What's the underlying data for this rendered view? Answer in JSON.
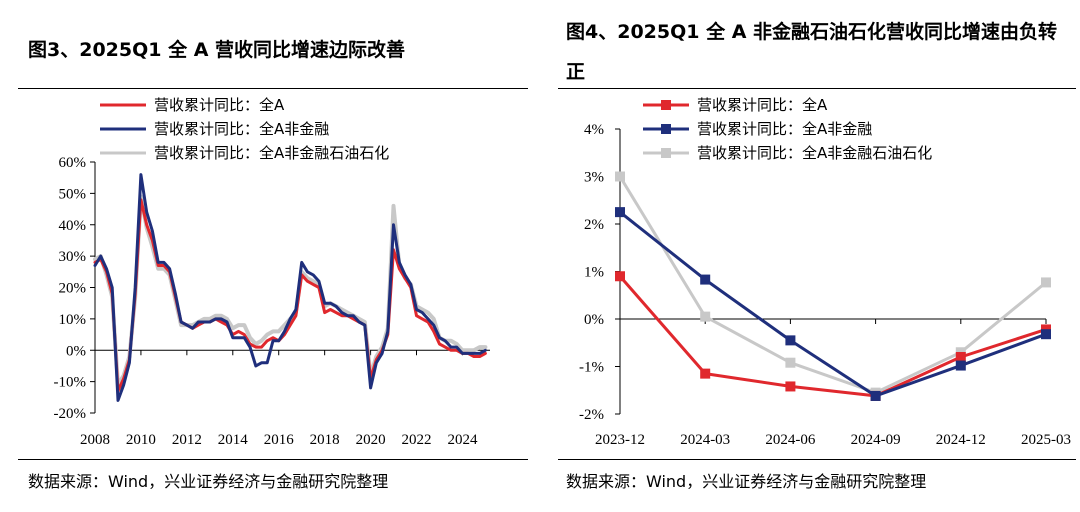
{
  "chart_data": [
    {
      "type": "line",
      "title": "图3、2025Q1 全 A 营收同比增速边际改善",
      "source": "数据来源：Wind，兴业证券经济与金融研究院整理",
      "xlabel": "",
      "ylabel": "",
      "xlim": [
        2008.0,
        2025.2
      ],
      "ylim": [
        -20,
        60
      ],
      "y_ticks": [
        "60%",
        "50%",
        "40%",
        "30%",
        "20%",
        "10%",
        "0%",
        "-10%",
        "-20%"
      ],
      "y_tick_values": [
        60,
        50,
        40,
        30,
        20,
        10,
        0,
        -10,
        -20
      ],
      "x_ticks": [
        "2008",
        "2010",
        "2012",
        "2014",
        "2016",
        "2018",
        "2020",
        "2022",
        "2024"
      ],
      "x_tick_values": [
        2008,
        2010,
        2012,
        2014,
        2016,
        2018,
        2020,
        2022,
        2024
      ],
      "legend_position": "top-left",
      "series": [
        {
          "name": "营收累计同比：全A",
          "color": "#E0282D",
          "x": [
            2008.0,
            2008.25,
            2008.5,
            2008.75,
            2009.0,
            2009.25,
            2009.5,
            2009.75,
            2010.0,
            2010.25,
            2010.5,
            2010.75,
            2011.0,
            2011.25,
            2011.5,
            2011.75,
            2012.0,
            2012.25,
            2012.5,
            2012.75,
            2013.0,
            2013.25,
            2013.5,
            2013.75,
            2014.0,
            2014.25,
            2014.5,
            2014.75,
            2015.0,
            2015.25,
            2015.5,
            2015.75,
            2016.0,
            2016.25,
            2016.5,
            2016.75,
            2017.0,
            2017.25,
            2017.5,
            2017.75,
            2018.0,
            2018.25,
            2018.5,
            2018.75,
            2019.0,
            2019.25,
            2019.5,
            2019.75,
            2020.0,
            2020.25,
            2020.5,
            2020.75,
            2021.0,
            2021.25,
            2021.5,
            2021.75,
            2022.0,
            2022.25,
            2022.5,
            2022.75,
            2023.0,
            2023.25,
            2023.5,
            2023.75,
            2024.0,
            2024.25,
            2024.5,
            2024.75,
            2025.0
          ],
          "values": [
            28,
            29,
            25,
            18,
            -13,
            -9,
            -3,
            18,
            48,
            40,
            35,
            27,
            27,
            25,
            17,
            9,
            8,
            7,
            8,
            9,
            9,
            10,
            9,
            8,
            5,
            6,
            5,
            2,
            1,
            1,
            3,
            4,
            3,
            5,
            8,
            11,
            24,
            22,
            21,
            20,
            12,
            13,
            12,
            11,
            11,
            10,
            9,
            8,
            -9,
            -3,
            0,
            5,
            32,
            26,
            23,
            20,
            11,
            10,
            9,
            6,
            2,
            1,
            0,
            0,
            -1,
            -1,
            -2,
            -2,
            -1
          ]
        },
        {
          "name": "营收累计同比：全A非金融",
          "color": "#1F2F7C",
          "x": [
            2008.0,
            2008.25,
            2008.5,
            2008.75,
            2009.0,
            2009.25,
            2009.5,
            2009.75,
            2010.0,
            2010.25,
            2010.5,
            2010.75,
            2011.0,
            2011.25,
            2011.5,
            2011.75,
            2012.0,
            2012.25,
            2012.5,
            2012.75,
            2013.0,
            2013.25,
            2013.5,
            2013.75,
            2014.0,
            2014.25,
            2014.5,
            2014.75,
            2015.0,
            2015.25,
            2015.5,
            2015.75,
            2016.0,
            2016.25,
            2016.5,
            2016.75,
            2017.0,
            2017.25,
            2017.5,
            2017.75,
            2018.0,
            2018.25,
            2018.5,
            2018.75,
            2019.0,
            2019.25,
            2019.5,
            2019.75,
            2020.0,
            2020.25,
            2020.5,
            2020.75,
            2021.0,
            2021.25,
            2021.5,
            2021.75,
            2022.0,
            2022.25,
            2022.5,
            2022.75,
            2023.0,
            2023.25,
            2023.5,
            2023.75,
            2024.0,
            2024.25,
            2024.5,
            2024.75,
            2025.0
          ],
          "values": [
            27,
            30,
            26,
            20,
            -16,
            -11,
            -4,
            20,
            56,
            44,
            38,
            28,
            28,
            26,
            18,
            9,
            8,
            7,
            9,
            9,
            9,
            10,
            10,
            9,
            4,
            4,
            4,
            1,
            -5,
            -4,
            -4,
            3,
            3,
            6,
            10,
            13,
            28,
            25,
            24,
            22,
            15,
            15,
            14,
            12,
            11,
            11,
            9,
            8,
            -12,
            -4,
            -1,
            6,
            40,
            28,
            24,
            21,
            13,
            12,
            10,
            8,
            4,
            3,
            1,
            1,
            -1,
            -1,
            -1,
            -1,
            0
          ]
        },
        {
          "name": "营收累计同比：全A非金融石油石化",
          "color": "#C8C8C8",
          "x": [
            2008.0,
            2008.25,
            2008.5,
            2008.75,
            2009.0,
            2009.25,
            2009.5,
            2009.75,
            2010.0,
            2010.25,
            2010.5,
            2010.75,
            2011.0,
            2011.25,
            2011.5,
            2011.75,
            2012.0,
            2012.25,
            2012.5,
            2012.75,
            2013.0,
            2013.25,
            2013.5,
            2013.75,
            2014.0,
            2014.25,
            2014.5,
            2014.75,
            2015.0,
            2015.25,
            2015.5,
            2015.75,
            2016.0,
            2016.25,
            2016.5,
            2016.75,
            2017.0,
            2017.25,
            2017.5,
            2017.75,
            2018.0,
            2018.25,
            2018.5,
            2018.75,
            2019.0,
            2019.25,
            2019.5,
            2019.75,
            2020.0,
            2020.25,
            2020.5,
            2020.75,
            2021.0,
            2021.25,
            2021.5,
            2021.75,
            2022.0,
            2022.25,
            2022.5,
            2022.75,
            2023.0,
            2023.25,
            2023.5,
            2023.75,
            2024.0,
            2024.25,
            2024.5,
            2024.75,
            2025.0
          ],
          "values": [
            29,
            30,
            24,
            17,
            -11,
            -8,
            -2,
            17,
            49,
            39,
            33,
            26,
            26,
            24,
            16,
            8,
            8,
            8,
            9,
            10,
            10,
            11,
            11,
            10,
            7,
            8,
            8,
            4,
            2,
            3,
            5,
            6,
            6,
            8,
            10,
            12,
            25,
            23,
            22,
            21,
            14,
            15,
            14,
            13,
            12,
            11,
            10,
            9,
            -8,
            -2,
            1,
            7,
            46,
            27,
            23,
            21,
            14,
            13,
            12,
            10,
            4,
            3,
            3,
            2,
            0,
            0,
            0,
            1,
            1
          ]
        }
      ]
    },
    {
      "type": "line",
      "title": "图4、2025Q1 全 A 非金融石油石化营收同比增速由负转正",
      "source": "数据来源：Wind，兴业证券经济与金融研究院整理",
      "xlabel": "",
      "ylabel": "",
      "categories": [
        "2023-12",
        "2024-03",
        "2024-06",
        "2024-09",
        "2024-12",
        "2025-03"
      ],
      "ylim": [
        -2,
        4
      ],
      "y_ticks": [
        "4%",
        "3%",
        "2%",
        "1%",
        "0%",
        "-1%",
        "-2%"
      ],
      "y_tick_values": [
        4,
        3,
        2,
        1,
        0,
        -1,
        -2
      ],
      "legend_position": "top-left",
      "series": [
        {
          "name": "营收累计同比：全A",
          "color": "#E0282D",
          "values": [
            0.9,
            -1.15,
            -1.42,
            -1.62,
            -0.8,
            -0.22
          ]
        },
        {
          "name": "营收累计同比：全A非金融",
          "color": "#1F2F7C",
          "values": [
            2.25,
            0.83,
            -0.45,
            -1.62,
            -0.98,
            -0.32
          ]
        },
        {
          "name": "营收累计同比：全A非金融石油石化",
          "color": "#C8C8C8",
          "values": [
            3.0,
            0.05,
            -0.92,
            -1.55,
            -0.7,
            0.77
          ]
        }
      ]
    }
  ]
}
